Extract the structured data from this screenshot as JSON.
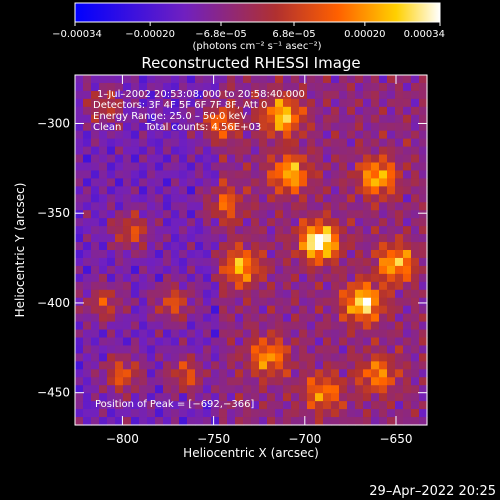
{
  "chart_data": {
    "type": "heatmap",
    "title": "Reconstructed RHESSI Image",
    "xlabel": "Heliocentric X (arcsec)",
    "ylabel": "Heliocentric Y (arcsec)",
    "xlim": [
      -826,
      -633
    ],
    "ylim": [
      -468,
      -273
    ],
    "x_ticks": [
      -800,
      -750,
      -700,
      -650
    ],
    "y_ticks": [
      -300,
      -350,
      -400,
      -450
    ],
    "x_tick_labels": [
      "−800",
      "−750",
      "−700",
      "−650"
    ],
    "y_tick_labels": [
      "−300",
      "−350",
      "−400",
      "−450"
    ],
    "colorbar": {
      "min": -0.00034,
      "max": 0.00034,
      "ticks": [
        -0.00034,
        -0.0002,
        -6.8e-05,
        6.8e-05,
        0.0002,
        0.00034
      ],
      "tick_labels": [
        "−0.00034",
        "−0.00020",
        "−6.8e−05",
        "6.8e−05",
        "0.00020",
        "0.00034"
      ],
      "unit_label": "(photons cm⁻² s⁻¹ asec⁻²)",
      "colors": [
        "#0000ff",
        "#7020c0",
        "#b03030",
        "#ff6000",
        "#ffd000",
        "#ffffff"
      ]
    },
    "annotations": {
      "time_range": "1–Jul–2002 20:53:08.000 to 20:58:40.000",
      "detectors": "Detectors: 3F 4F 5F 6F 7F 8F, Att 0",
      "energy": "Energy Range: 25.0 – 50.0 keV",
      "method": "Clean",
      "counts": "Total counts: 4.56E+03",
      "peak": "Position of Peak = [−692,−366]"
    },
    "peak": {
      "x": -692,
      "y": -366
    },
    "bright_sources": [
      {
        "x": -692,
        "y": -366,
        "strength": 1.0
      },
      {
        "x": -668,
        "y": -400,
        "strength": 0.85
      },
      {
        "x": -708,
        "y": -328,
        "strength": 0.7
      },
      {
        "x": -712,
        "y": -296,
        "strength": 0.75
      },
      {
        "x": -660,
        "y": -330,
        "strength": 0.7
      },
      {
        "x": -650,
        "y": -378,
        "strength": 0.7
      },
      {
        "x": -735,
        "y": -380,
        "strength": 0.65
      },
      {
        "x": -748,
        "y": -300,
        "strength": 0.55
      },
      {
        "x": -772,
        "y": -400,
        "strength": 0.5
      },
      {
        "x": -800,
        "y": -440,
        "strength": 0.55
      },
      {
        "x": -810,
        "y": -400,
        "strength": 0.45
      },
      {
        "x": -795,
        "y": -360,
        "strength": 0.5
      },
      {
        "x": -720,
        "y": -430,
        "strength": 0.6
      },
      {
        "x": -690,
        "y": -450,
        "strength": 0.55
      },
      {
        "x": -660,
        "y": -440,
        "strength": 0.55
      },
      {
        "x": -765,
        "y": -440,
        "strength": 0.5
      },
      {
        "x": -745,
        "y": -345,
        "strength": 0.45
      },
      {
        "x": -810,
        "y": -290,
        "strength": 0.4
      }
    ]
  },
  "footer": {
    "timestamp": "29–Apr–2022 20:25"
  }
}
